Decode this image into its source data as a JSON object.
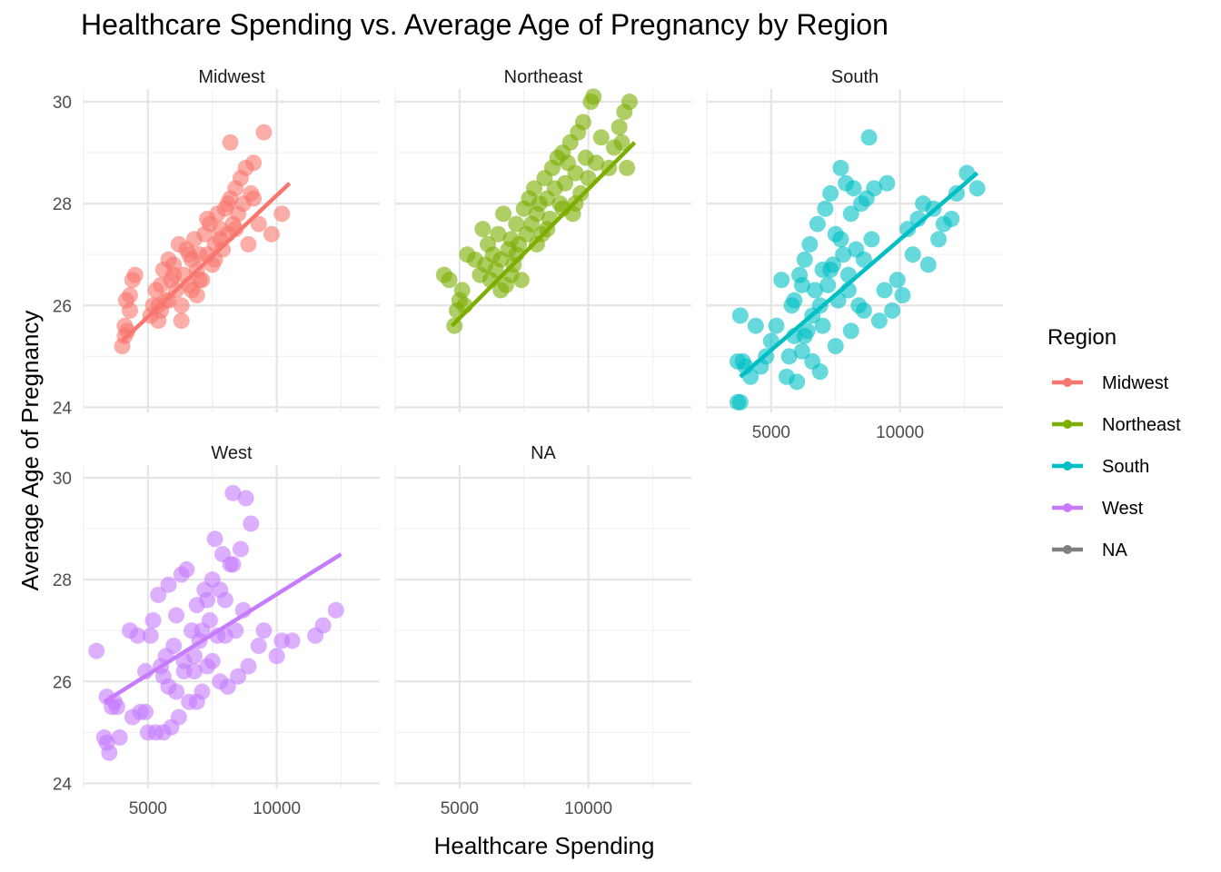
{
  "chart_data": {
    "type": "scatter",
    "title": "Healthcare Spending vs. Average Age of Pregnancy by Region",
    "xlabel": "Healthcare Spending",
    "ylabel": "Average Age of Pregnancy",
    "xlim": [
      2500,
      14000
    ],
    "ylim": [
      23.9,
      30.25
    ],
    "x_ticks": [
      5000,
      10000
    ],
    "y_ticks": [
      24,
      26,
      28,
      30
    ],
    "grid": true,
    "legend": {
      "title": "Region",
      "placement": "right",
      "entries": [
        {
          "name": "Midwest",
          "color": "#F8766D"
        },
        {
          "name": "Northeast",
          "color": "#7CAE00"
        },
        {
          "name": "South",
          "color": "#00BFC4"
        },
        {
          "name": "West",
          "color": "#C77CFF"
        },
        {
          "name": "NA",
          "color": "#7F7F7F"
        }
      ]
    },
    "panels": [
      {
        "name": "Midwest",
        "color": "#F8766D",
        "trend": [
          [
            4000,
            25.3
          ],
          [
            10500,
            28.4
          ]
        ],
        "points": [
          [
            4000,
            25.2
          ],
          [
            4100,
            25.4
          ],
          [
            4100,
            25.6
          ],
          [
            4200,
            25.5
          ],
          [
            4150,
            26.1
          ],
          [
            4300,
            26.2
          ],
          [
            4300,
            25.9
          ],
          [
            4500,
            26.6
          ],
          [
            4400,
            26.5
          ],
          [
            5100,
            25.8
          ],
          [
            5200,
            26.0
          ],
          [
            5300,
            26.3
          ],
          [
            5400,
            25.7
          ],
          [
            5500,
            26.4
          ],
          [
            5600,
            26.7
          ],
          [
            5700,
            26.1
          ],
          [
            5800,
            26.9
          ],
          [
            5900,
            26.5
          ],
          [
            6000,
            26.8
          ],
          [
            6100,
            26.3
          ],
          [
            6200,
            27.2
          ],
          [
            6300,
            26.0
          ],
          [
            6400,
            26.6
          ],
          [
            6500,
            27.1
          ],
          [
            6600,
            26.4
          ],
          [
            6700,
            26.9
          ],
          [
            6800,
            27.3
          ],
          [
            6900,
            26.7
          ],
          [
            7000,
            27.0
          ],
          [
            7100,
            26.5
          ],
          [
            7200,
            27.4
          ],
          [
            7300,
            27.0
          ],
          [
            7400,
            27.6
          ],
          [
            7500,
            26.8
          ],
          [
            7600,
            27.2
          ],
          [
            7700,
            27.8
          ],
          [
            7800,
            27.5
          ],
          [
            7900,
            27.1
          ],
          [
            8000,
            27.9
          ],
          [
            8100,
            27.4
          ],
          [
            8200,
            28.1
          ],
          [
            8300,
            27.6
          ],
          [
            8400,
            28.3
          ],
          [
            8500,
            27.8
          ],
          [
            8600,
            28.5
          ],
          [
            8700,
            28.0
          ],
          [
            8800,
            28.7
          ],
          [
            9000,
            28.2
          ],
          [
            9100,
            28.8
          ],
          [
            8200,
            29.2
          ],
          [
            9500,
            29.4
          ],
          [
            9300,
            27.6
          ],
          [
            9800,
            27.4
          ],
          [
            10200,
            27.8
          ],
          [
            8900,
            27.2
          ],
          [
            7600,
            26.9
          ],
          [
            6900,
            26.2
          ],
          [
            6300,
            25.7
          ],
          [
            5800,
            26.1
          ],
          [
            5400,
            26.0
          ],
          [
            7300,
            27.7
          ],
          [
            8100,
            28.0
          ],
          [
            6600,
            27.0
          ],
          [
            7000,
            26.5
          ],
          [
            5500,
            25.9
          ],
          [
            6000,
            26.6
          ],
          [
            7800,
            27.3
          ],
          [
            8400,
            27.5
          ],
          [
            9100,
            28.1
          ],
          [
            6700,
            26.3
          ]
        ]
      },
      {
        "name": "Northeast",
        "color": "#7CAE00",
        "trend": [
          [
            4700,
            25.6
          ],
          [
            11800,
            29.2
          ]
        ],
        "points": [
          [
            4400,
            26.6
          ],
          [
            4600,
            26.5
          ],
          [
            4800,
            25.6
          ],
          [
            4900,
            25.9
          ],
          [
            5000,
            26.1
          ],
          [
            5100,
            26.3
          ],
          [
            5200,
            26.0
          ],
          [
            5300,
            27.0
          ],
          [
            5800,
            26.6
          ],
          [
            5900,
            27.5
          ],
          [
            6000,
            26.8
          ],
          [
            6100,
            27.2
          ],
          [
            6200,
            26.5
          ],
          [
            6300,
            27.0
          ],
          [
            6400,
            26.7
          ],
          [
            6500,
            27.4
          ],
          [
            6600,
            26.9
          ],
          [
            6700,
            27.8
          ],
          [
            6800,
            26.4
          ],
          [
            6900,
            27.1
          ],
          [
            7000,
            27.3
          ],
          [
            7100,
            26.8
          ],
          [
            7200,
            27.6
          ],
          [
            7300,
            27.2
          ],
          [
            7400,
            26.5
          ],
          [
            7500,
            27.9
          ],
          [
            7600,
            27.4
          ],
          [
            7700,
            28.1
          ],
          [
            7800,
            27.6
          ],
          [
            7900,
            28.3
          ],
          [
            8000,
            27.8
          ],
          [
            8100,
            28.0
          ],
          [
            8200,
            27.4
          ],
          [
            8300,
            28.5
          ],
          [
            8400,
            28.1
          ],
          [
            8500,
            27.7
          ],
          [
            8600,
            28.7
          ],
          [
            8700,
            28.3
          ],
          [
            8800,
            28.9
          ],
          [
            8900,
            28.0
          ],
          [
            9000,
            29.0
          ],
          [
            9100,
            28.4
          ],
          [
            9200,
            28.8
          ],
          [
            9300,
            29.2
          ],
          [
            9400,
            27.8
          ],
          [
            9500,
            28.6
          ],
          [
            9600,
            29.4
          ],
          [
            9700,
            28.2
          ],
          [
            9800,
            29.6
          ],
          [
            9900,
            28.9
          ],
          [
            10100,
            30.0
          ],
          [
            10200,
            30.1
          ],
          [
            10500,
            29.3
          ],
          [
            10800,
            28.7
          ],
          [
            11000,
            29.1
          ],
          [
            11200,
            29.5
          ],
          [
            11400,
            29.8
          ],
          [
            11600,
            30.0
          ],
          [
            11500,
            28.7
          ],
          [
            11300,
            29.2
          ],
          [
            7200,
            27.0
          ],
          [
            6600,
            26.3
          ],
          [
            8000,
            27.2
          ],
          [
            9500,
            28.0
          ],
          [
            10000,
            28.5
          ],
          [
            5600,
            26.9
          ],
          [
            7000,
            26.6
          ],
          [
            8400,
            27.5
          ],
          [
            9000,
            27.9
          ],
          [
            10300,
            28.8
          ]
        ]
      },
      {
        "name": "South",
        "color": "#00BFC4",
        "trend": [
          [
            3800,
            24.6
          ],
          [
            13000,
            28.6
          ]
        ],
        "points": [
          [
            3700,
            24.1
          ],
          [
            3800,
            24.1
          ],
          [
            3700,
            24.9
          ],
          [
            3900,
            24.9
          ],
          [
            3800,
            25.8
          ],
          [
            4000,
            24.8
          ],
          [
            4200,
            24.6
          ],
          [
            4400,
            25.6
          ],
          [
            4600,
            24.8
          ],
          [
            4800,
            25.0
          ],
          [
            5000,
            25.3
          ],
          [
            5200,
            25.6
          ],
          [
            5400,
            26.5
          ],
          [
            5600,
            24.6
          ],
          [
            5700,
            25.0
          ],
          [
            5800,
            26.0
          ],
          [
            5900,
            25.4
          ],
          [
            6000,
            24.5
          ],
          [
            6100,
            26.6
          ],
          [
            6200,
            25.1
          ],
          [
            6300,
            26.9
          ],
          [
            6400,
            25.5
          ],
          [
            6500,
            27.2
          ],
          [
            6600,
            25.8
          ],
          [
            6700,
            26.3
          ],
          [
            6800,
            27.6
          ],
          [
            6900,
            26.0
          ],
          [
            7000,
            26.7
          ],
          [
            7100,
            27.9
          ],
          [
            7200,
            26.4
          ],
          [
            7300,
            28.2
          ],
          [
            7400,
            26.8
          ],
          [
            7500,
            27.4
          ],
          [
            7600,
            26.1
          ],
          [
            7700,
            28.7
          ],
          [
            7800,
            27.0
          ],
          [
            7900,
            28.4
          ],
          [
            8000,
            26.6
          ],
          [
            8100,
            27.8
          ],
          [
            8200,
            28.3
          ],
          [
            8300,
            27.1
          ],
          [
            8400,
            26.0
          ],
          [
            8500,
            28.0
          ],
          [
            8600,
            26.9
          ],
          [
            8700,
            28.1
          ],
          [
            8800,
            29.3
          ],
          [
            8900,
            27.3
          ],
          [
            9000,
            28.3
          ],
          [
            9200,
            25.7
          ],
          [
            9500,
            28.4
          ],
          [
            9700,
            25.9
          ],
          [
            9900,
            26.5
          ],
          [
            10100,
            26.2
          ],
          [
            10300,
            27.5
          ],
          [
            10500,
            27.0
          ],
          [
            10700,
            27.7
          ],
          [
            10900,
            28.0
          ],
          [
            11100,
            26.8
          ],
          [
            11300,
            27.9
          ],
          [
            11500,
            27.3
          ],
          [
            11700,
            27.6
          ],
          [
            12000,
            27.7
          ],
          [
            12200,
            28.2
          ],
          [
            12600,
            28.6
          ],
          [
            13000,
            28.3
          ],
          [
            6900,
            24.7
          ],
          [
            7500,
            25.2
          ],
          [
            8100,
            25.5
          ],
          [
            8600,
            25.9
          ],
          [
            9400,
            26.3
          ],
          [
            6300,
            25.4
          ],
          [
            5900,
            26.1
          ],
          [
            6600,
            24.9
          ],
          [
            7300,
            26.7
          ],
          [
            7000,
            25.6
          ],
          [
            6200,
            26.4
          ],
          [
            8000,
            26.3
          ],
          [
            7700,
            27.3
          ]
        ]
      },
      {
        "name": "West",
        "color": "#C77CFF",
        "trend": [
          [
            3300,
            25.6
          ],
          [
            12500,
            28.5
          ]
        ],
        "points": [
          [
            3000,
            26.6
          ],
          [
            3300,
            24.9
          ],
          [
            3400,
            24.8
          ],
          [
            3500,
            24.6
          ],
          [
            3400,
            25.7
          ],
          [
            3600,
            25.5
          ],
          [
            3700,
            25.6
          ],
          [
            3800,
            25.5
          ],
          [
            3900,
            24.9
          ],
          [
            4300,
            27.0
          ],
          [
            4400,
            25.3
          ],
          [
            4600,
            26.9
          ],
          [
            4700,
            25.4
          ],
          [
            4900,
            26.2
          ],
          [
            5000,
            25.0
          ],
          [
            5100,
            26.9
          ],
          [
            5200,
            27.2
          ],
          [
            5300,
            25.0
          ],
          [
            5400,
            27.7
          ],
          [
            5500,
            26.3
          ],
          [
            5600,
            25.0
          ],
          [
            5700,
            26.5
          ],
          [
            5800,
            27.9
          ],
          [
            5900,
            25.1
          ],
          [
            6000,
            26.7
          ],
          [
            6100,
            27.3
          ],
          [
            6200,
            25.3
          ],
          [
            6300,
            28.1
          ],
          [
            6400,
            26.4
          ],
          [
            6500,
            28.2
          ],
          [
            6600,
            25.6
          ],
          [
            6700,
            27.0
          ],
          [
            6800,
            26.2
          ],
          [
            6900,
            27.5
          ],
          [
            7000,
            26.8
          ],
          [
            7100,
            25.8
          ],
          [
            7200,
            27.8
          ],
          [
            7300,
            26.3
          ],
          [
            7400,
            27.2
          ],
          [
            7500,
            28.0
          ],
          [
            7600,
            28.8
          ],
          [
            7700,
            26.9
          ],
          [
            7800,
            26.0
          ],
          [
            7900,
            28.5
          ],
          [
            8000,
            27.6
          ],
          [
            8100,
            25.9
          ],
          [
            8200,
            28.3
          ],
          [
            8300,
            29.7
          ],
          [
            8400,
            27.0
          ],
          [
            8500,
            26.1
          ],
          [
            8600,
            28.6
          ],
          [
            8700,
            27.4
          ],
          [
            8800,
            29.6
          ],
          [
            8900,
            26.3
          ],
          [
            9000,
            29.1
          ],
          [
            9300,
            26.7
          ],
          [
            9500,
            27.0
          ],
          [
            10000,
            26.5
          ],
          [
            10200,
            26.8
          ],
          [
            10600,
            26.8
          ],
          [
            11500,
            26.9
          ],
          [
            11800,
            27.1
          ],
          [
            12300,
            27.4
          ],
          [
            6800,
            26.5
          ],
          [
            7300,
            27.6
          ],
          [
            6100,
            25.8
          ],
          [
            5600,
            26.1
          ],
          [
            4900,
            25.4
          ],
          [
            7800,
            27.8
          ],
          [
            8300,
            28.3
          ],
          [
            6900,
            25.6
          ],
          [
            7500,
            26.4
          ],
          [
            6400,
            26.2
          ],
          [
            5800,
            25.9
          ],
          [
            7100,
            27.0
          ],
          [
            8000,
            26.9
          ]
        ]
      },
      {
        "name": "NA",
        "color": "#7F7F7F",
        "trend": [],
        "points": []
      }
    ]
  }
}
